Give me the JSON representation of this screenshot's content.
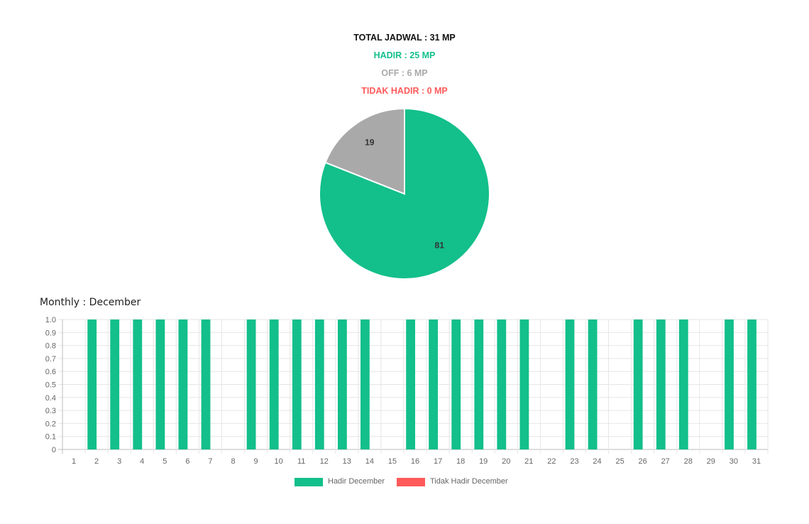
{
  "summary": {
    "total": "TOTAL JADWAL : 31 MP",
    "hadir": "HADIR : 25 MP",
    "off": "OFF : 6 MP",
    "tidak_hadir": "TIDAK HADIR : 0 MP"
  },
  "colors": {
    "hadir": "#13bf8b",
    "off": "#a9a9a9",
    "tidak_hadir": "#ff5a5a",
    "grid": "#e6e6e6",
    "axis_text": "#666666"
  },
  "monthly_title": "Monthly : December",
  "chart_data": [
    {
      "type": "pie",
      "slices": [
        {
          "label": "81",
          "value": 81,
          "color": "#13bf8b"
        },
        {
          "label": "19",
          "value": 19,
          "color": "#a9a9a9"
        }
      ]
    },
    {
      "type": "bar",
      "categories": [
        "1",
        "2",
        "3",
        "4",
        "5",
        "6",
        "7",
        "8",
        "9",
        "10",
        "11",
        "12",
        "13",
        "14",
        "15",
        "16",
        "17",
        "18",
        "19",
        "20",
        "21",
        "22",
        "23",
        "24",
        "25",
        "26",
        "27",
        "28",
        "29",
        "30",
        "31"
      ],
      "series": [
        {
          "name": "Hadir December",
          "color": "#13bf8b",
          "values": [
            0,
            1,
            1,
            1,
            1,
            1,
            1,
            0,
            1,
            1,
            1,
            1,
            1,
            1,
            0,
            1,
            1,
            1,
            1,
            1,
            1,
            0,
            1,
            1,
            0,
            1,
            1,
            1,
            0,
            1,
            1
          ]
        },
        {
          "name": "Tidak Hadir December",
          "color": "#ff5a5a",
          "values": [
            0,
            0,
            0,
            0,
            0,
            0,
            0,
            0,
            0,
            0,
            0,
            0,
            0,
            0,
            0,
            0,
            0,
            0,
            0,
            0,
            0,
            0,
            0,
            0,
            0,
            0,
            0,
            0,
            0,
            0,
            0
          ]
        }
      ],
      "yticks": [
        "0",
        "0.1",
        "0.2",
        "0.3",
        "0.4",
        "0.5",
        "0.6",
        "0.7",
        "0.8",
        "0.9",
        "1.0"
      ],
      "ylim": [
        0,
        1
      ],
      "grid": true,
      "legend": "bottom"
    }
  ]
}
